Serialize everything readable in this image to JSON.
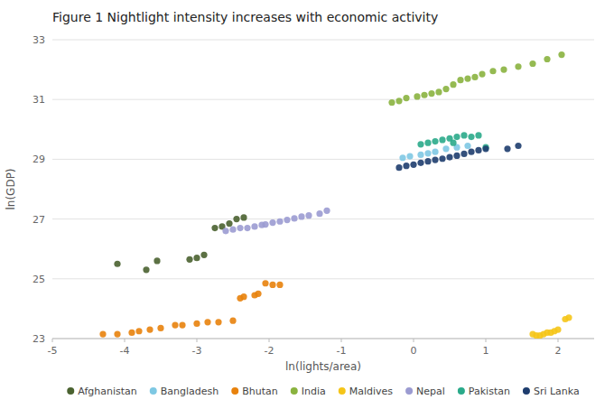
{
  "chart_data": {
    "type": "scatter",
    "title": "Figure 1  Nightlight intensity increases with economic activity",
    "xlabel": "ln(lights/area)",
    "ylabel": "ln(GDP)",
    "xlim": [
      -5,
      2.5
    ],
    "ylim": [
      23,
      33
    ],
    "xticks": [
      -5,
      -4,
      -3,
      -2,
      -1,
      0,
      1,
      2
    ],
    "yticks": [
      23,
      25,
      27,
      29,
      31,
      33
    ],
    "grid": true,
    "legend": "bottom",
    "series": [
      {
        "name": "Afghanistan",
        "color": "#4a6230",
        "x": [
          -4.1,
          -3.7,
          -3.55,
          -3.1,
          -3.0,
          -2.9,
          -2.75,
          -2.65,
          -2.55,
          -2.45,
          -2.35
        ],
        "values": [
          25.5,
          25.3,
          25.6,
          25.65,
          25.7,
          25.8,
          26.7,
          26.75,
          26.85,
          27.0,
          27.05
        ]
      },
      {
        "name": "Bangladesh",
        "color": "#7ec8e3",
        "x": [
          -0.15,
          -0.05,
          0.1,
          0.2,
          0.3,
          0.45,
          0.6,
          0.75
        ],
        "values": [
          29.05,
          29.1,
          29.15,
          29.2,
          29.25,
          29.35,
          29.4,
          29.45
        ]
      },
      {
        "name": "Bhutan",
        "color": "#e8820c",
        "x": [
          -4.3,
          -4.1,
          -3.9,
          -3.8,
          -3.65,
          -3.5,
          -3.3,
          -3.2,
          -3.0,
          -2.85,
          -2.7,
          -2.5,
          -2.4,
          -2.35,
          -2.2,
          -2.15,
          -2.05,
          -1.95,
          -1.85
        ],
        "values": [
          23.15,
          23.15,
          23.2,
          23.25,
          23.3,
          23.35,
          23.45,
          23.45,
          23.5,
          23.55,
          23.55,
          23.6,
          24.35,
          24.4,
          24.45,
          24.5,
          24.85,
          24.8,
          24.8
        ]
      },
      {
        "name": "India",
        "color": "#8ab33f",
        "x": [
          -0.3,
          -0.2,
          -0.1,
          0.05,
          0.15,
          0.25,
          0.35,
          0.45,
          0.55,
          0.65,
          0.75,
          0.85,
          0.95,
          1.1,
          1.25,
          1.45,
          1.65,
          1.85,
          2.05
        ],
        "values": [
          30.9,
          30.95,
          31.05,
          31.1,
          31.15,
          31.2,
          31.25,
          31.35,
          31.5,
          31.65,
          31.7,
          31.75,
          31.85,
          31.95,
          32.0,
          32.1,
          32.2,
          32.35,
          32.5
        ]
      },
      {
        "name": "Maldives",
        "color": "#f5c518",
        "x": [
          1.65,
          1.7,
          1.75,
          1.8,
          1.85,
          1.9,
          1.95,
          2.0,
          2.1,
          2.15
        ],
        "values": [
          23.15,
          23.1,
          23.1,
          23.15,
          23.2,
          23.2,
          23.25,
          23.3,
          23.65,
          23.7
        ]
      },
      {
        "name": "Nepal",
        "color": "#9b9bd1",
        "x": [
          -2.6,
          -2.5,
          -2.4,
          -2.3,
          -2.2,
          -2.1,
          -2.05,
          -1.95,
          -1.85,
          -1.75,
          -1.65,
          -1.55,
          -1.45,
          -1.3,
          -1.2
        ],
        "values": [
          26.6,
          26.65,
          26.7,
          26.7,
          26.75,
          26.8,
          26.82,
          26.88,
          26.92,
          26.97,
          27.02,
          27.08,
          27.12,
          27.18,
          27.28
        ]
      },
      {
        "name": "Pakistan",
        "color": "#2aaa8a",
        "x": [
          0.1,
          0.2,
          0.3,
          0.4,
          0.5,
          0.55,
          0.6,
          0.7,
          0.8,
          0.9,
          1.0
        ],
        "values": [
          29.5,
          29.55,
          29.6,
          29.65,
          29.7,
          29.55,
          29.75,
          29.8,
          29.75,
          29.8,
          29.4
        ]
      },
      {
        "name": "Sri Lanka",
        "color": "#1e3d6e",
        "x": [
          -0.2,
          -0.1,
          0.0,
          0.1,
          0.2,
          0.3,
          0.4,
          0.5,
          0.6,
          0.7,
          0.8,
          0.9,
          1.0,
          1.3,
          1.45
        ],
        "values": [
          28.72,
          28.78,
          28.82,
          28.88,
          28.93,
          28.98,
          29.02,
          29.07,
          29.12,
          29.18,
          29.25,
          29.3,
          29.35,
          29.35,
          29.45
        ]
      }
    ]
  }
}
